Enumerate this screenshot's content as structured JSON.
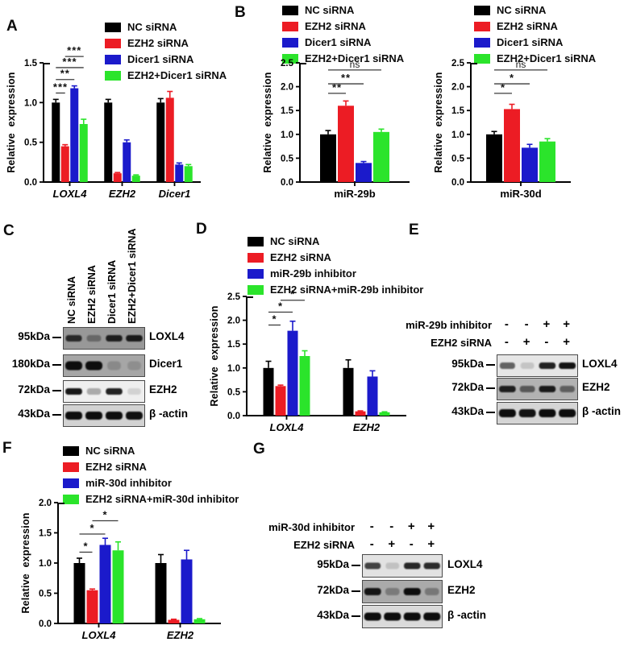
{
  "colors": {
    "black": "#000000",
    "red": "#ec1c24",
    "blue": "#1b1acb",
    "green": "#2be42b",
    "bracket": "#3c3c3c"
  },
  "panels": {
    "A": {
      "label": "A",
      "legend": [
        "NC siRNA",
        "EZH2 siRNA",
        "Dicer1 siRNA",
        "EZH2+Dicer1 siRNA"
      ],
      "legend_colors": [
        "black",
        "red",
        "blue",
        "green"
      ],
      "chart_ref": 0
    },
    "B": {
      "label": "B",
      "legend": [
        "NC siRNA",
        "EZH2 siRNA",
        "Dicer1 siRNA",
        "EZH2+Dicer1 siRNA"
      ],
      "legend_colors": [
        "black",
        "red",
        "blue",
        "green"
      ],
      "chart_refs": [
        1,
        2
      ]
    },
    "C": {
      "label": "C",
      "lanes": [
        "NC siRNA",
        "EZH2 siRNA",
        "Dicer1 siRNA",
        "EZH2+Dicer1 siRNA"
      ],
      "rows": [
        {
          "marker": "95kDa",
          "protein": "LOXL4",
          "bg": "#989898",
          "bands": [
            0.8,
            0.35,
            0.88,
            0.9
          ],
          "band_h": 8
        },
        {
          "marker": "180kDa",
          "protein": "Dicer1",
          "bg": "#a6a6a6",
          "bands": [
            1,
            1,
            0.18,
            0.15
          ],
          "band_h": 11
        },
        {
          "marker": "72kDa",
          "protein": "EZH2",
          "bg": "#efefef",
          "bands": [
            0.95,
            0.3,
            0.9,
            0.12
          ],
          "band_h": 8
        },
        {
          "marker": "43kDa",
          "protein": "β -actin",
          "bg": "#d2d2d2",
          "bands": [
            1,
            1,
            1,
            0.98
          ],
          "band_h": 10
        }
      ]
    },
    "D": {
      "label": "D",
      "legend": [
        "NC siRNA",
        "EZH2 siRNA",
        "miR-29b inhibitor",
        "EZH2 siRNA+miR-29b inhibitor"
      ],
      "legend_colors": [
        "black",
        "red",
        "blue",
        "green"
      ],
      "chart_ref": 3
    },
    "E": {
      "label": "E",
      "conditions": [
        {
          "name": "miR-29b inhibitor",
          "signs": [
            "-",
            "-",
            "+",
            "+"
          ]
        },
        {
          "name": "EZH2 siRNA",
          "signs": [
            "-",
            "+",
            "-",
            "+"
          ]
        }
      ],
      "rows": [
        {
          "marker": "95kDa",
          "protein": "LOXL4",
          "bg": "#e6e6e6",
          "bands": [
            0.6,
            0.15,
            0.9,
            0.97
          ],
          "band_h": 8
        },
        {
          "marker": "72kDa",
          "protein": "EZH2",
          "bg": "#b2b2b2",
          "bands": [
            0.9,
            0.55,
            0.92,
            0.5
          ],
          "band_h": 8
        },
        {
          "marker": "43kDa",
          "protein": "β -actin",
          "bg": "#d5d5d5",
          "bands": [
            1,
            0.97,
            1,
            1
          ],
          "band_h": 10
        }
      ]
    },
    "F": {
      "label": "F",
      "legend": [
        "NC siRNA",
        "EZH2 siRNA",
        "miR-30d inhibitor",
        "EZH2 siRNA+miR-30d inhibitor"
      ],
      "legend_colors": [
        "black",
        "red",
        "blue",
        "green"
      ],
      "chart_ref": 4
    },
    "G": {
      "label": "G",
      "conditions": [
        {
          "name": "miR-30d inhibitor",
          "signs": [
            "-",
            "-",
            "+",
            "+"
          ]
        },
        {
          "name": "EZH2 siRNA",
          "signs": [
            "-",
            "+",
            "-",
            "+"
          ]
        }
      ],
      "rows": [
        {
          "marker": "95kDa",
          "protein": "LOXL4",
          "bg": "#e2e2e2",
          "bands": [
            0.75,
            0.15,
            0.88,
            0.85
          ],
          "band_h": 8
        },
        {
          "marker": "72kDa",
          "protein": "EZH2",
          "bg": "#aaaaaa",
          "bands": [
            0.95,
            0.3,
            1,
            0.32
          ],
          "band_h": 9
        },
        {
          "marker": "43kDa",
          "protein": "β -actin",
          "bg": "#dadada",
          "bands": [
            1,
            1,
            1,
            1
          ],
          "band_h": 10
        }
      ]
    }
  },
  "chart_data": [
    {
      "type": "bar",
      "ylabel": "Relative expression",
      "ylim": [
        0,
        1.5
      ],
      "yticks": [
        0,
        0.5,
        1,
        1.5
      ],
      "categories": [
        "LOXL4",
        "EZH2",
        "Dicer1"
      ],
      "italic_x": true,
      "grid": false,
      "legend_position": "top-right",
      "series": [
        {
          "name": "NC siRNA",
          "color": "black",
          "values": [
            1.0,
            1.0,
            1.0
          ],
          "errors": [
            0.04,
            0.04,
            0.05
          ]
        },
        {
          "name": "EZH2 siRNA",
          "color": "red",
          "values": [
            0.45,
            0.11,
            1.06
          ],
          "errors": [
            0.02,
            0.01,
            0.08
          ]
        },
        {
          "name": "Dicer1 siRNA",
          "color": "blue",
          "values": [
            1.18,
            0.5,
            0.22
          ],
          "errors": [
            0.03,
            0.03,
            0.02
          ]
        },
        {
          "name": "EZH2+Dicer1 siRNA",
          "color": "green",
          "values": [
            0.73,
            0.08,
            0.2
          ],
          "errors": [
            0.06,
            0.01,
            0.02
          ]
        }
      ],
      "brackets": [
        {
          "category": 0,
          "from": 0,
          "to": 1,
          "label": "***",
          "y": 1.12
        },
        {
          "category": 0,
          "from": 0,
          "to": 2,
          "label": "**",
          "y": 1.29
        },
        {
          "category": 0,
          "from": 0,
          "to": 3,
          "label": "***",
          "y": 1.44
        },
        {
          "category": 0,
          "from": 1,
          "to": 3,
          "label": "***",
          "y": 1.58
        }
      ]
    },
    {
      "type": "bar",
      "ylabel": "Relative expression",
      "ylim": [
        0,
        2.5
      ],
      "yticks": [
        0,
        0.5,
        1,
        1.5,
        2,
        2.5
      ],
      "categories": [
        "miR-29b"
      ],
      "italic_x": false,
      "grid": false,
      "legend_position": "top",
      "series": [
        {
          "name": "NC siRNA",
          "color": "black",
          "values": [
            1.0
          ],
          "errors": [
            0.08
          ]
        },
        {
          "name": "EZH2 siRNA",
          "color": "red",
          "values": [
            1.6
          ],
          "errors": [
            0.1
          ]
        },
        {
          "name": "Dicer1 siRNA",
          "color": "blue",
          "values": [
            0.4
          ],
          "errors": [
            0.03
          ]
        },
        {
          "name": "EZH2+Dicer1 siRNA",
          "color": "green",
          "values": [
            1.05
          ],
          "errors": [
            0.06
          ]
        }
      ],
      "brackets": [
        {
          "category": 0,
          "from": 0,
          "to": 1,
          "label": "**",
          "y": 1.86
        },
        {
          "category": 0,
          "from": 0,
          "to": 2,
          "label": "**",
          "y": 2.06
        },
        {
          "category": 0,
          "from": 0,
          "to": 3,
          "label": "ns",
          "y": 2.35
        }
      ]
    },
    {
      "type": "bar",
      "ylabel": "Relative expression",
      "ylim": [
        0,
        2.5
      ],
      "yticks": [
        0,
        0.5,
        1,
        1.5,
        2,
        2.5
      ],
      "categories": [
        "miR-30d"
      ],
      "italic_x": false,
      "grid": false,
      "legend_position": "top",
      "series": [
        {
          "name": "NC siRNA",
          "color": "black",
          "values": [
            1.0
          ],
          "errors": [
            0.06
          ]
        },
        {
          "name": "EZH2 siRNA",
          "color": "red",
          "values": [
            1.53
          ],
          "errors": [
            0.1
          ]
        },
        {
          "name": "Dicer1 siRNA",
          "color": "blue",
          "values": [
            0.72
          ],
          "errors": [
            0.07
          ]
        },
        {
          "name": "EZH2+Dicer1 siRNA",
          "color": "green",
          "values": [
            0.85
          ],
          "errors": [
            0.06
          ]
        }
      ],
      "brackets": [
        {
          "category": 0,
          "from": 0,
          "to": 1,
          "label": "*",
          "y": 1.86
        },
        {
          "category": 0,
          "from": 0,
          "to": 2,
          "label": "*",
          "y": 2.06
        },
        {
          "category": 0,
          "from": 0,
          "to": 3,
          "label": "ns",
          "y": 2.35
        }
      ]
    },
    {
      "type": "bar",
      "ylabel": "Relative expression",
      "ylim": [
        0,
        2.5
      ],
      "yticks": [
        0,
        0.5,
        1,
        1.5,
        2,
        2.5
      ],
      "categories": [
        "LOXL4",
        "EZH2"
      ],
      "italic_x": true,
      "grid": false,
      "legend_position": "top",
      "series": [
        {
          "name": "NC siRNA",
          "color": "black",
          "values": [
            1.0,
            1.0
          ],
          "errors": [
            0.14,
            0.17
          ]
        },
        {
          "name": "EZH2 siRNA",
          "color": "red",
          "values": [
            0.62,
            0.09
          ],
          "errors": [
            0.02,
            0.01
          ]
        },
        {
          "name": "miR-29b inhibitor",
          "color": "blue",
          "values": [
            1.78,
            0.82
          ],
          "errors": [
            0.2,
            0.12
          ]
        },
        {
          "name": "EZH2 siRNA+miR-29b inhibitor",
          "color": "green",
          "values": [
            1.25,
            0.07
          ],
          "errors": [
            0.11,
            0.01
          ]
        }
      ],
      "brackets": [
        {
          "category": 0,
          "from": 0,
          "to": 1,
          "label": "*",
          "y": 1.9
        },
        {
          "category": 0,
          "from": 0,
          "to": 2,
          "label": "*",
          "y": 2.17
        },
        {
          "category": 0,
          "from": 1,
          "to": 3,
          "label": "*",
          "y": 2.42
        }
      ]
    },
    {
      "type": "bar",
      "ylabel": "Relative expression",
      "ylim": [
        0,
        2.0
      ],
      "yticks": [
        0,
        0.5,
        1,
        1.5,
        2
      ],
      "categories": [
        "LOXL4",
        "EZH2"
      ],
      "italic_x": true,
      "grid": false,
      "legend_position": "top",
      "series": [
        {
          "name": "NC siRNA",
          "color": "black",
          "values": [
            1.0,
            1.0
          ],
          "errors": [
            0.08,
            0.14
          ]
        },
        {
          "name": "EZH2 siRNA",
          "color": "red",
          "values": [
            0.55,
            0.06
          ],
          "errors": [
            0.02,
            0.01
          ]
        },
        {
          "name": "miR-30d inhibitor",
          "color": "blue",
          "values": [
            1.3,
            1.06
          ],
          "errors": [
            0.11,
            0.15
          ]
        },
        {
          "name": "EZH2 siRNA+miR-30d inhibitor",
          "color": "green",
          "values": [
            1.21,
            0.07
          ],
          "errors": [
            0.14,
            0.01
          ]
        }
      ],
      "brackets": [
        {
          "category": 0,
          "from": 0,
          "to": 1,
          "label": "*",
          "y": 1.18
        },
        {
          "category": 0,
          "from": 0,
          "to": 2,
          "label": "*",
          "y": 1.48
        },
        {
          "category": 0,
          "from": 1,
          "to": 3,
          "label": "*",
          "y": 1.7
        }
      ]
    }
  ]
}
